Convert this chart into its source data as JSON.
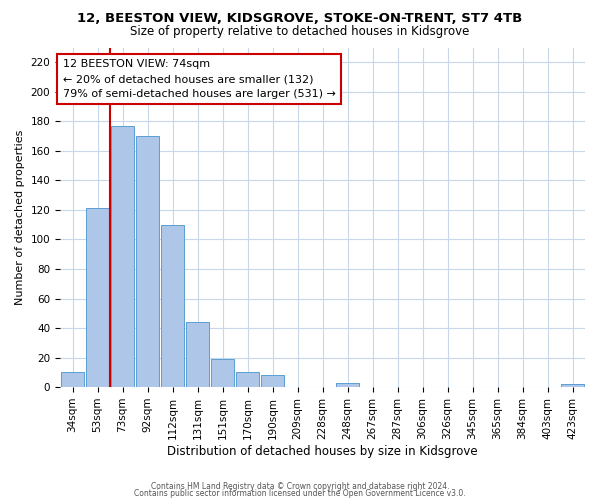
{
  "title": "12, BEESTON VIEW, KIDSGROVE, STOKE-ON-TRENT, ST7 4TB",
  "subtitle": "Size of property relative to detached houses in Kidsgrove",
  "xlabel": "Distribution of detached houses by size in Kidsgrove",
  "ylabel": "Number of detached properties",
  "bar_labels": [
    "34sqm",
    "53sqm",
    "73sqm",
    "92sqm",
    "112sqm",
    "131sqm",
    "151sqm",
    "170sqm",
    "190sqm",
    "209sqm",
    "228sqm",
    "248sqm",
    "267sqm",
    "287sqm",
    "306sqm",
    "326sqm",
    "345sqm",
    "365sqm",
    "384sqm",
    "403sqm",
    "423sqm"
  ],
  "bar_values": [
    10,
    121,
    177,
    170,
    110,
    44,
    19,
    10,
    8,
    0,
    0,
    3,
    0,
    0,
    0,
    0,
    0,
    0,
    0,
    0,
    2
  ],
  "bar_color": "#aec6e8",
  "bar_edge_color": "#5a9fd4",
  "vline_x_idx": 2,
  "vline_color": "#cc0000",
  "annotation_title": "12 BEESTON VIEW: 74sqm",
  "annotation_line1": "← 20% of detached houses are smaller (132)",
  "annotation_line2": "79% of semi-detached houses are larger (531) →",
  "annotation_box_color": "#ffffff",
  "annotation_box_edge": "#cc0000",
  "ylim": [
    0,
    230
  ],
  "yticks": [
    0,
    20,
    40,
    60,
    80,
    100,
    120,
    140,
    160,
    180,
    200,
    220
  ],
  "footnote1": "Contains HM Land Registry data © Crown copyright and database right 2024.",
  "footnote2": "Contains public sector information licensed under the Open Government Licence v3.0.",
  "bg_color": "#ffffff",
  "grid_color": "#c8d8e8",
  "title_fontsize": 9.5,
  "subtitle_fontsize": 8.5,
  "ylabel_fontsize": 8,
  "xlabel_fontsize": 8.5,
  "tick_fontsize": 7.5,
  "annot_fontsize": 8.0,
  "footnote_fontsize": 5.5
}
